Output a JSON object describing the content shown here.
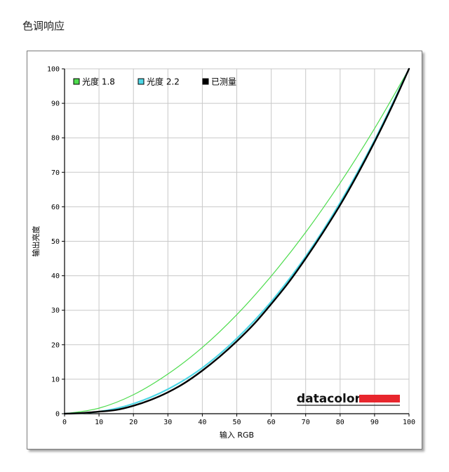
{
  "page": {
    "title": "色调响应"
  },
  "brand": {
    "logo_text": "datacolor",
    "accent_color": "#e8262d"
  },
  "chart_data": {
    "type": "line",
    "title": "",
    "xlabel": "输入 RGB",
    "ylabel": "输出亮度",
    "xlim": [
      0,
      100
    ],
    "ylim": [
      0,
      100
    ],
    "x_ticks": [
      0,
      10,
      20,
      30,
      40,
      50,
      60,
      70,
      80,
      90,
      100
    ],
    "y_ticks": [
      0,
      10,
      20,
      30,
      40,
      50,
      60,
      70,
      80,
      90,
      100
    ],
    "grid": true,
    "legend_position": "top-left",
    "series": [
      {
        "name": "光度 1.8",
        "color": "#4ddc4d",
        "x": [
          0,
          10,
          20,
          30,
          40,
          50,
          60,
          70,
          80,
          90,
          100
        ],
        "y": [
          0,
          1.6,
          5.5,
          11.5,
          19.2,
          28.7,
          39.9,
          52.6,
          66.9,
          82.7,
          100
        ]
      },
      {
        "name": "光度 2.2",
        "color": "#4fd7e6",
        "x": [
          0,
          10,
          20,
          30,
          40,
          50,
          60,
          70,
          80,
          90,
          100
        ],
        "y": [
          0,
          0.6,
          2.9,
          7.1,
          13.3,
          21.8,
          32.5,
          45.6,
          61.2,
          79.3,
          100
        ]
      },
      {
        "name": "已测量",
        "color": "#000000",
        "x": [
          0,
          5,
          10,
          15,
          20,
          25,
          30,
          35,
          40,
          45,
          50,
          55,
          60,
          65,
          70,
          75,
          80,
          85,
          90,
          95,
          100
        ],
        "y": [
          0,
          0.2,
          0.6,
          1.1,
          2.3,
          4.0,
          6.2,
          9.0,
          12.5,
          16.5,
          21.0,
          26.0,
          31.8,
          38.0,
          45.0,
          52.5,
          60.5,
          69.3,
          78.8,
          89.0,
          100
        ]
      }
    ]
  }
}
